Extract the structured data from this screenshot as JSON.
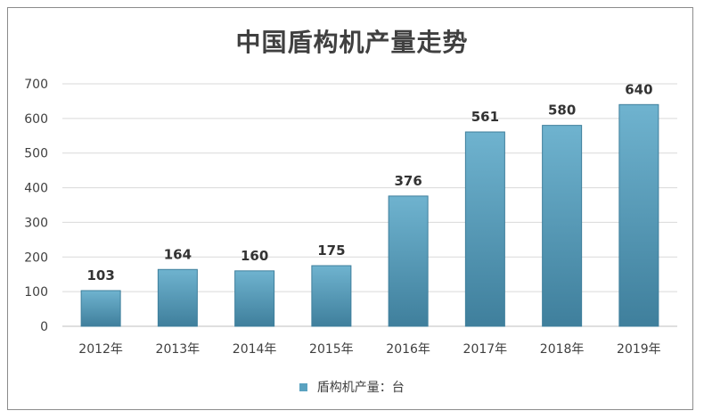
{
  "chart_data": {
    "type": "bar",
    "title": "中国盾构机产量走势",
    "categories": [
      "2012年",
      "2013年",
      "2014年",
      "2015年",
      "2016年",
      "2017年",
      "2018年",
      "2019年"
    ],
    "series": [
      {
        "name": "盾构机产量：台",
        "values": [
          103,
          164,
          160,
          175,
          376,
          561,
          580,
          640
        ]
      }
    ],
    "ylim": [
      0,
      700
    ],
    "yticks": [
      "0",
      "100",
      "200",
      "300",
      "400",
      "500",
      "600",
      "700"
    ],
    "grid": true,
    "legend": "bottom",
    "colors": {
      "bar": "#5aa2c0",
      "bar_dark": "#3f7f9c",
      "grid": "#d9d9d9"
    }
  }
}
